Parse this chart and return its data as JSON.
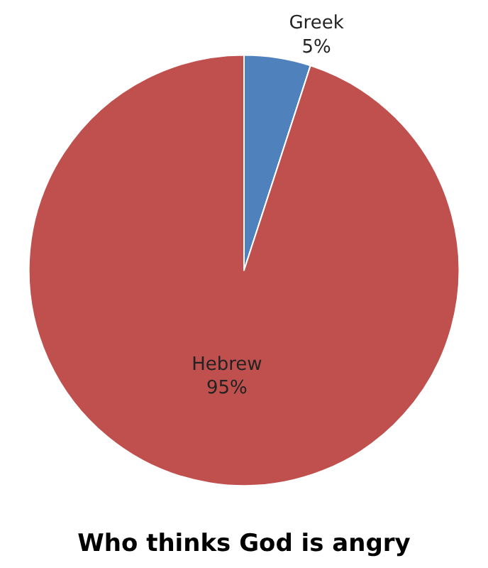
{
  "chart_data": {
    "type": "pie",
    "title": "Who thinks God is angry",
    "categories": [
      "Greek",
      "Hebrew"
    ],
    "values": [
      5,
      95
    ],
    "value_labels": [
      "5%",
      "95%"
    ],
    "colors": [
      "#4f81bd",
      "#c0504d"
    ],
    "legend": false
  }
}
